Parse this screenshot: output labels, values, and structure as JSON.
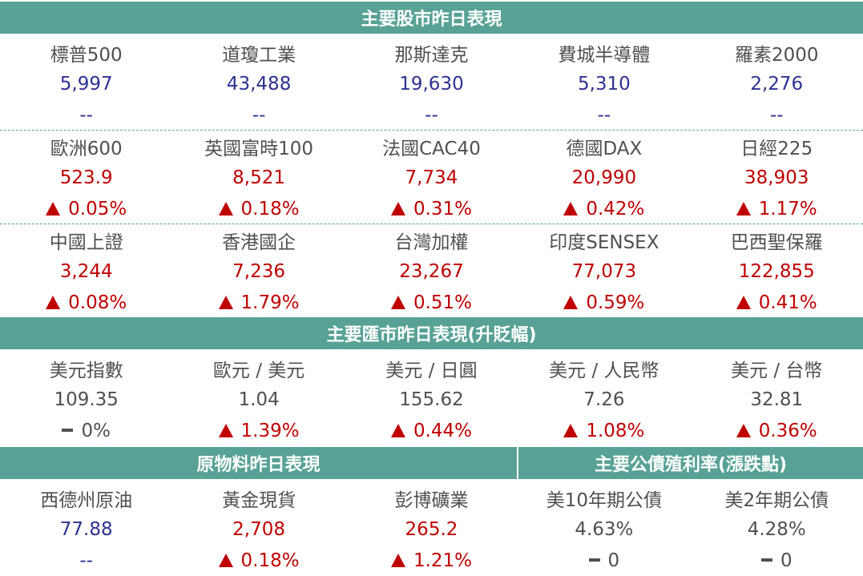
{
  "sections": {
    "stock": {
      "title": "主要股市昨日表現"
    },
    "fx": {
      "title": "主要匯市昨日表現(升貶幅)"
    },
    "commodity": {
      "title": "原物料昨日表現"
    },
    "bond": {
      "title": "主要公債殖利率(漲跌點)"
    }
  },
  "stock_rows": [
    {
      "items": [
        {
          "name": "標普500",
          "value": "5,997",
          "change": "--"
        },
        {
          "name": "道瓊工業",
          "value": "43,488",
          "change": "--"
        },
        {
          "name": "那斯達克",
          "value": "19,630",
          "change": "--"
        },
        {
          "name": "費城半導體",
          "value": "5,310",
          "change": "--"
        },
        {
          "name": "羅素2000",
          "value": "2,276",
          "change": "--"
        }
      ]
    },
    {
      "items": [
        {
          "name": "歐洲600",
          "value": "523.9",
          "change": "0.05%"
        },
        {
          "name": "英國富時100",
          "value": "8,521",
          "change": "0.18%"
        },
        {
          "name": "法國CAC40",
          "value": "7,734",
          "change": "0.31%"
        },
        {
          "name": "德國DAX",
          "value": "20,990",
          "change": "0.42%"
        },
        {
          "name": "日經225",
          "value": "38,903",
          "change": "1.17%"
        }
      ]
    },
    {
      "items": [
        {
          "name": "中國上證",
          "value": "3,244",
          "change": "0.08%"
        },
        {
          "name": "香港國企",
          "value": "7,236",
          "change": "1.79%"
        },
        {
          "name": "台灣加權",
          "value": "23,267",
          "change": "0.51%"
        },
        {
          "name": "印度SENSEX",
          "value": "77,073",
          "change": "0.59%"
        },
        {
          "name": "巴西聖保羅",
          "value": "122,855",
          "change": "0.41%"
        }
      ]
    }
  ],
  "fx_items": [
    {
      "name": "美元指數",
      "value": "109.35",
      "change": "0%"
    },
    {
      "name": "歐元 / 美元",
      "value": "1.04",
      "change": "1.39%"
    },
    {
      "name": "美元 / 日圓",
      "value": "155.62",
      "change": "0.44%"
    },
    {
      "name": "美元 / 人民幣",
      "value": "7.26",
      "change": "1.08%"
    },
    {
      "name": "美元 / 台幣",
      "value": "32.81",
      "change": "0.36%"
    }
  ],
  "commodity_items": [
    {
      "name": "西德州原油",
      "value": "77.88",
      "change": "--"
    },
    {
      "name": "黃金現貨",
      "value": "2,708",
      "change": "0.18%"
    },
    {
      "name": "彭博礦業",
      "value": "265.2",
      "change": "1.21%"
    }
  ],
  "bond_items": [
    {
      "name": "美10年期公債",
      "value": "4.63%",
      "change": "0"
    },
    {
      "name": "美2年期公債",
      "value": "4.28%",
      "change": "0"
    }
  ],
  "colors": {
    "header_bg": "#57a295",
    "up_red": "#c00000",
    "neutral_blue": "#2e3192",
    "text_gray": "#505050"
  }
}
